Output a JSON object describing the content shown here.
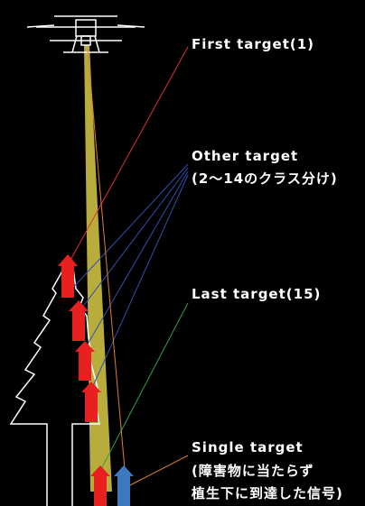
{
  "labels": [
    {
      "lines": [
        "First target(1)"
      ]
    },
    {
      "lines": [
        "Other target",
        "(2～14のクラス分け)"
      ]
    },
    {
      "lines": [
        "Last target(15)"
      ]
    },
    {
      "lines": [
        "Single target",
        "(障害物に当たらず",
        "植生下に到達した信号)"
      ]
    }
  ]
}
